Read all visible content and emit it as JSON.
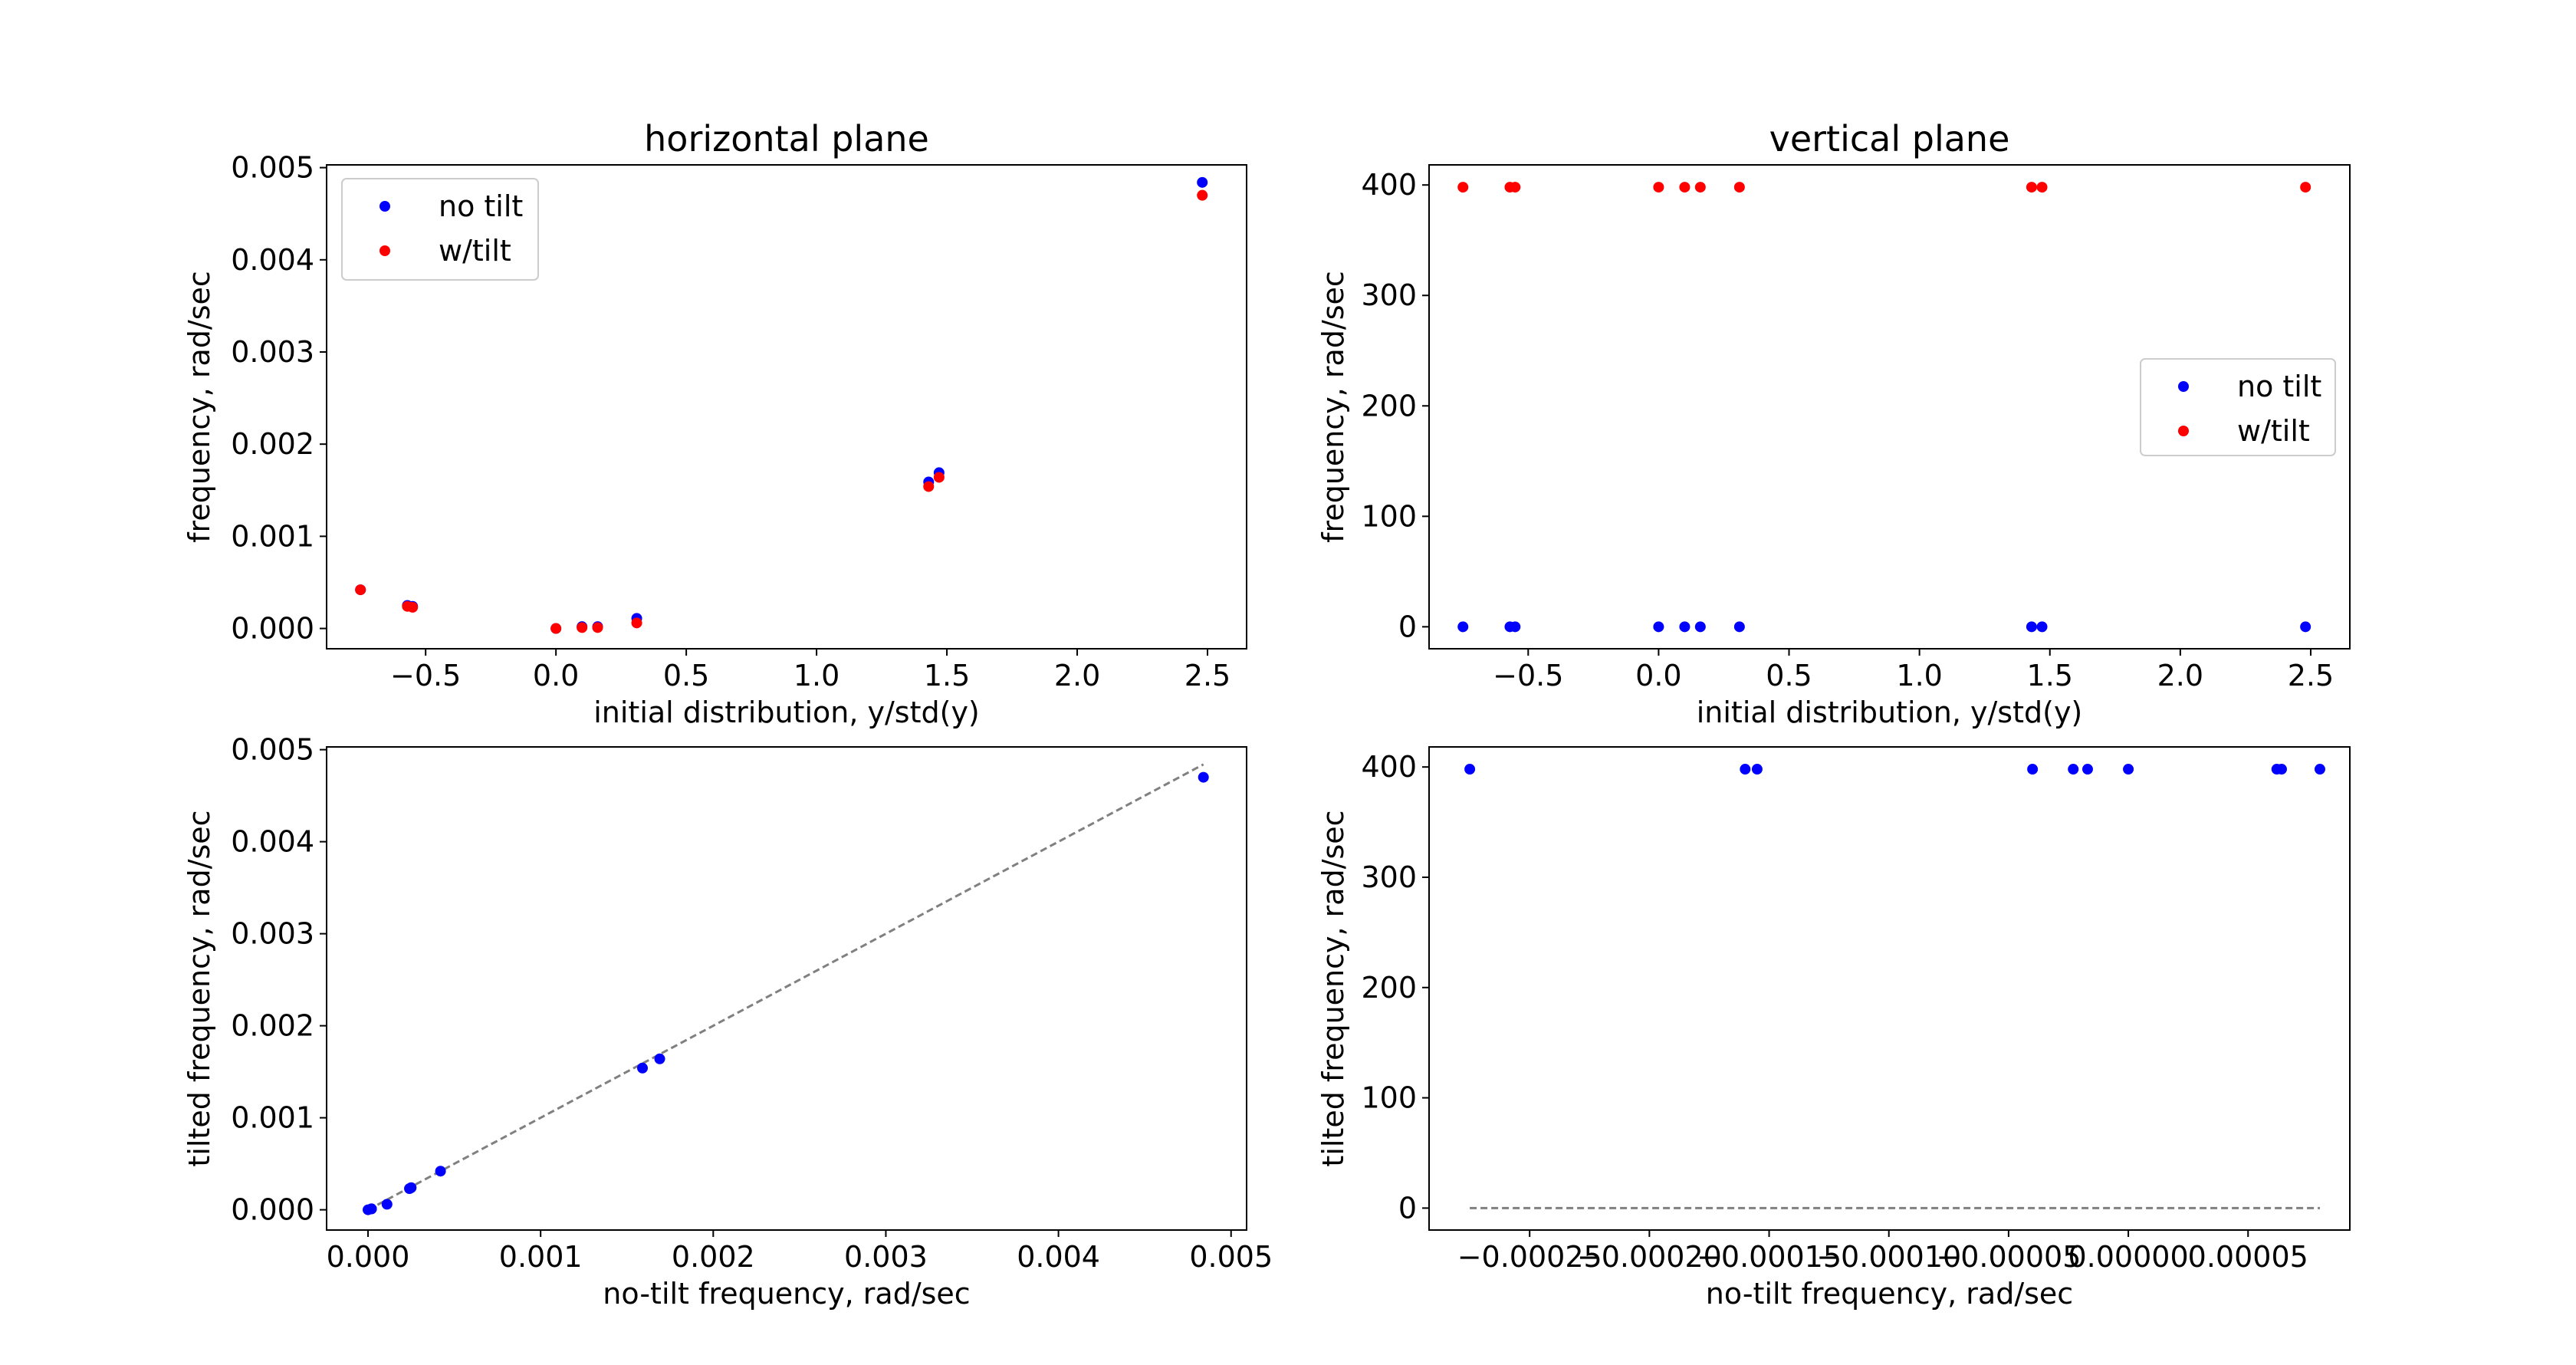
{
  "chart_data": [
    {
      "id": "horizontal",
      "type": "scatter",
      "title": "horizontal plane",
      "xlabel": "initial distribution, y/std(y)",
      "ylabel": "frequency, rad/sec",
      "xlim": [
        -0.88,
        2.65
      ],
      "ylim": [
        -0.00022,
        0.00503
      ],
      "xticks": [
        -0.5,
        0.0,
        0.5,
        1.0,
        1.5,
        2.0,
        2.5
      ],
      "xtick_labels": [
        "−0.5",
        "0.0",
        "0.5",
        "1.0",
        "1.5",
        "2.0",
        "2.5"
      ],
      "yticks": [
        0.0,
        0.001,
        0.002,
        0.003,
        0.004,
        0.005
      ],
      "ytick_labels": [
        "0.000",
        "0.001",
        "0.002",
        "0.003",
        "0.004",
        "0.005"
      ],
      "grid": false,
      "legend": "upper-left",
      "series": [
        {
          "name": "no tilt",
          "color": "#0000ff",
          "x": [
            -0.75,
            -0.57,
            -0.55,
            0.0,
            0.1,
            0.16,
            0.31,
            1.43,
            1.47,
            2.48
          ],
          "y": [
            0.00042,
            0.00025,
            0.00024,
            0.0,
            2e-05,
            2e-05,
            0.00011,
            0.00159,
            0.00169,
            0.00484
          ]
        },
        {
          "name": "w/tilt",
          "color": "#ff0000",
          "x": [
            -0.75,
            -0.57,
            -0.55,
            0.0,
            0.1,
            0.16,
            0.31,
            1.43,
            1.47,
            2.48
          ],
          "y": [
            0.00042,
            0.00024,
            0.00023,
            0.0,
            1e-05,
            1e-05,
            6e-05,
            0.00154,
            0.00164,
            0.0047
          ]
        }
      ]
    },
    {
      "id": "vertical",
      "type": "scatter",
      "title": "vertical plane",
      "xlabel": "initial distribution, y/std(y)",
      "ylabel": "frequency, rad/sec",
      "xlim": [
        -0.88,
        2.65
      ],
      "ylim": [
        -19.9,
        418.2
      ],
      "xticks": [
        -0.5,
        0.0,
        0.5,
        1.0,
        1.5,
        2.0,
        2.5
      ],
      "xtick_labels": [
        "−0.5",
        "0.0",
        "0.5",
        "1.0",
        "1.5",
        "2.0",
        "2.5"
      ],
      "yticks": [
        0,
        100,
        200,
        300,
        400
      ],
      "ytick_labels": [
        "0",
        "100",
        "200",
        "300",
        "400"
      ],
      "grid": false,
      "legend": "center-right",
      "series": [
        {
          "name": "no tilt",
          "color": "#0000ff",
          "x": [
            -0.75,
            -0.57,
            -0.55,
            0.0,
            0.1,
            0.16,
            0.31,
            1.43,
            1.47,
            2.48
          ],
          "y": [
            0,
            0,
            0,
            0,
            0,
            0,
            0,
            0,
            0,
            0
          ]
        },
        {
          "name": "w/tilt",
          "color": "#ff0000",
          "x": [
            -0.75,
            -0.57,
            -0.55,
            0.0,
            0.1,
            0.16,
            0.31,
            1.43,
            1.47,
            2.48
          ],
          "y": [
            398,
            398,
            398,
            398,
            398,
            398,
            398,
            398,
            398,
            398
          ]
        }
      ]
    },
    {
      "id": "horizontal-compare",
      "type": "scatter",
      "title": "",
      "xlabel": "no-tilt frequency, rad/sec",
      "ylabel": "tilted frequency, rad/sec",
      "xlim": [
        -0.00024,
        0.00509
      ],
      "ylim": [
        -0.00022,
        0.00503
      ],
      "xticks": [
        0.0,
        0.001,
        0.002,
        0.003,
        0.004,
        0.005
      ],
      "xtick_labels": [
        "0.000",
        "0.001",
        "0.002",
        "0.003",
        "0.004",
        "0.005"
      ],
      "yticks": [
        0.0,
        0.001,
        0.002,
        0.003,
        0.004,
        0.005
      ],
      "ytick_labels": [
        "0.000",
        "0.001",
        "0.002",
        "0.003",
        "0.004",
        "0.005"
      ],
      "grid": false,
      "reference_line": {
        "x": [
          0.0,
          0.00484
        ],
        "y": [
          0.0,
          0.00484
        ],
        "color": "#808080",
        "style": "dashed"
      },
      "series": [
        {
          "color": "#0000ff",
          "x": [
            0.0,
            2e-05,
            2e-05,
            0.00011,
            0.00024,
            0.00025,
            0.00042,
            0.00159,
            0.00169,
            0.00484
          ],
          "y": [
            0.0,
            1e-05,
            1e-05,
            6e-05,
            0.00023,
            0.00024,
            0.00042,
            0.00154,
            0.00164,
            0.0047
          ]
        }
      ]
    },
    {
      "id": "vertical-compare",
      "type": "scatter",
      "title": "",
      "xlabel": "no-tilt frequency, rad/sec",
      "ylabel": "tilted frequency, rad/sec",
      "xlim": [
        -0.000292,
        9.25e-05
      ],
      "ylim": [
        -19.9,
        418.2
      ],
      "xticks": [
        -0.00025,
        -0.0002,
        -0.00015,
        -0.0001,
        -5e-05,
        0.0,
        5e-05
      ],
      "xtick_labels": [
        "−0.00025",
        "−0.00020",
        "−0.00015",
        "−0.00010",
        "−0.00005",
        "0.00000",
        "0.00005"
      ],
      "yticks": [
        0,
        100,
        200,
        300,
        400
      ],
      "ytick_labels": [
        "0",
        "100",
        "200",
        "300",
        "400"
      ],
      "grid": false,
      "reference_line": {
        "x": [
          -0.000275,
          8e-05
        ],
        "y": [
          0,
          0
        ],
        "color": "#808080",
        "style": "dashed"
      },
      "series": [
        {
          "color": "#0000ff",
          "x": [
            -0.000275,
            -0.00016,
            -0.000155,
            -4e-05,
            -2.3e-05,
            -1.7e-05,
            0.0,
            6.2e-05,
            6.4e-05,
            8e-05
          ],
          "y": [
            398,
            398,
            398,
            398,
            398,
            398,
            398,
            398,
            398,
            398
          ]
        }
      ]
    }
  ]
}
